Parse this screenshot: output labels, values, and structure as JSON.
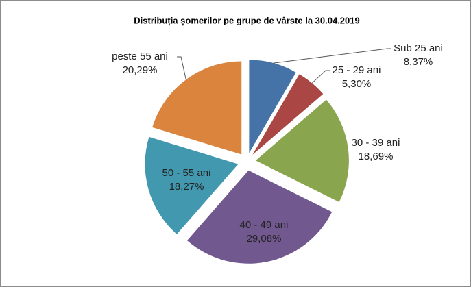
{
  "chart_data": {
    "type": "pie",
    "title": "Distribuția șomerilor pe grupe de vârste la 30.04.2019",
    "categories": [
      "Sub 25 ani",
      "25 - 29 ani",
      "30 - 39 ani",
      "40 - 49 ani",
      "50 - 55 ani",
      "peste 55 ani"
    ],
    "values": [
      8.37,
      5.3,
      18.69,
      29.08,
      18.27,
      20.29
    ],
    "value_labels": [
      "8,37%",
      "5,30%",
      "18,69%",
      "29,08%",
      "18,27%",
      "20,29%"
    ],
    "colors": [
      "#4572a7",
      "#aa4643",
      "#89a54e",
      "#71588f",
      "#4198af",
      "#db843d"
    ]
  }
}
